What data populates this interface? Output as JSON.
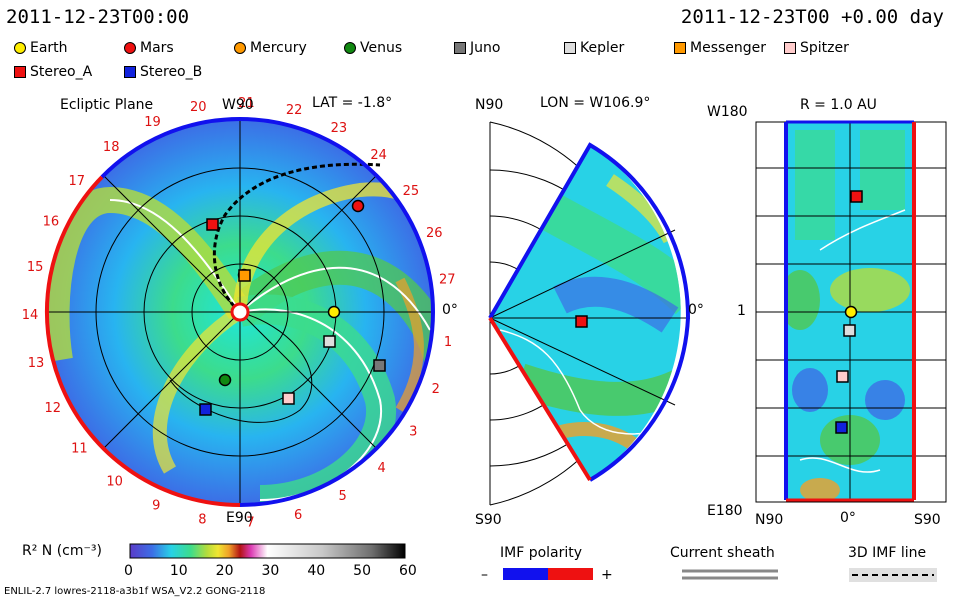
{
  "header": {
    "left_date": "2011-12-23T00:00",
    "right_date": "2011-12-23T00 +0.00 day"
  },
  "legend": {
    "items": [
      {
        "name": "Earth",
        "shape": "circle",
        "color": "#ffee00"
      },
      {
        "name": "Mars",
        "shape": "circle",
        "color": "#ee1111"
      },
      {
        "name": "Mercury",
        "shape": "circle",
        "color": "#ff9900"
      },
      {
        "name": "Venus",
        "shape": "circle",
        "color": "#118811"
      },
      {
        "name": "Juno",
        "shape": "square",
        "color": "#777777"
      },
      {
        "name": "Kepler",
        "shape": "square",
        "color": "#dddddd"
      },
      {
        "name": "Messenger",
        "shape": "square",
        "color": "#ff9900"
      },
      {
        "name": "Spitzer",
        "shape": "square",
        "color": "#ffcccc"
      },
      {
        "name": "Stereo_A",
        "shape": "square",
        "color": "#ee1111"
      },
      {
        "name": "Stereo_B",
        "shape": "square",
        "color": "#1122dd"
      }
    ]
  },
  "panels": {
    "ecliptic": {
      "title": "Ecliptic Plane",
      "top_label": "W90",
      "bottom_label": "E90",
      "right_label": "0°",
      "lat_label": "LAT = -1.8°",
      "rotation_labels": [
        "1",
        "2",
        "3",
        "4",
        "5",
        "6",
        "7",
        "8",
        "9",
        "10",
        "11",
        "12",
        "13",
        "14",
        "15",
        "16",
        "17",
        "18",
        "19",
        "20",
        "21",
        "22",
        "23",
        "24",
        "25",
        "26",
        "27"
      ]
    },
    "meridional": {
      "top_left": "N90",
      "bottom_left": "S90",
      "right_label": "0°",
      "lon_label": "LON = W106.9°"
    },
    "radial": {
      "title": "R = 1.0 AU",
      "top_left": "W180",
      "mid_left": "1",
      "bottom_left": "E180",
      "bottom_x_labels": [
        "N90",
        "0°",
        "S90"
      ]
    }
  },
  "colorbar": {
    "label": "R² N (cm⁻³)",
    "ticks": [
      "0",
      "10",
      "20",
      "30",
      "40",
      "50",
      "60"
    ],
    "colors": [
      "#5a3cc8",
      "#3c6ee6",
      "#28b4f0",
      "#1ee6dc",
      "#3cdc8c",
      "#50c850",
      "#b4dc3c",
      "#f0e632",
      "#f0a028",
      "#e6501e",
      "#b41414",
      "#dc3cb4",
      "#f0a0e6",
      "#ffffff",
      "#e6e6e6",
      "#bebebe",
      "#969696",
      "#6e6e6e",
      "#464646",
      "#141414"
    ]
  },
  "imf": {
    "title": "IMF polarity",
    "minus": "–",
    "plus": "+",
    "colors": {
      "negative": "#1111ee",
      "positive": "#ee1111"
    }
  },
  "sheath": {
    "title": "Current sheath"
  },
  "imf3d": {
    "title": "3D IMF line"
  },
  "footer": {
    "model": "ENLIL-2.7 lowres-2118-a3b1f WSA_V2.2 GONG-2118"
  },
  "chart_data": {
    "type": "heatmap",
    "title": "Ecliptic Plane",
    "quantity": "R² N (cm⁻³)",
    "range": [
      0,
      60
    ],
    "spacecraft_positions_shown": [
      "Earth",
      "Mars",
      "Mercury",
      "Venus",
      "Juno",
      "Kepler",
      "Messenger",
      "Spitzer",
      "Stereo_A",
      "Stereo_B"
    ]
  }
}
